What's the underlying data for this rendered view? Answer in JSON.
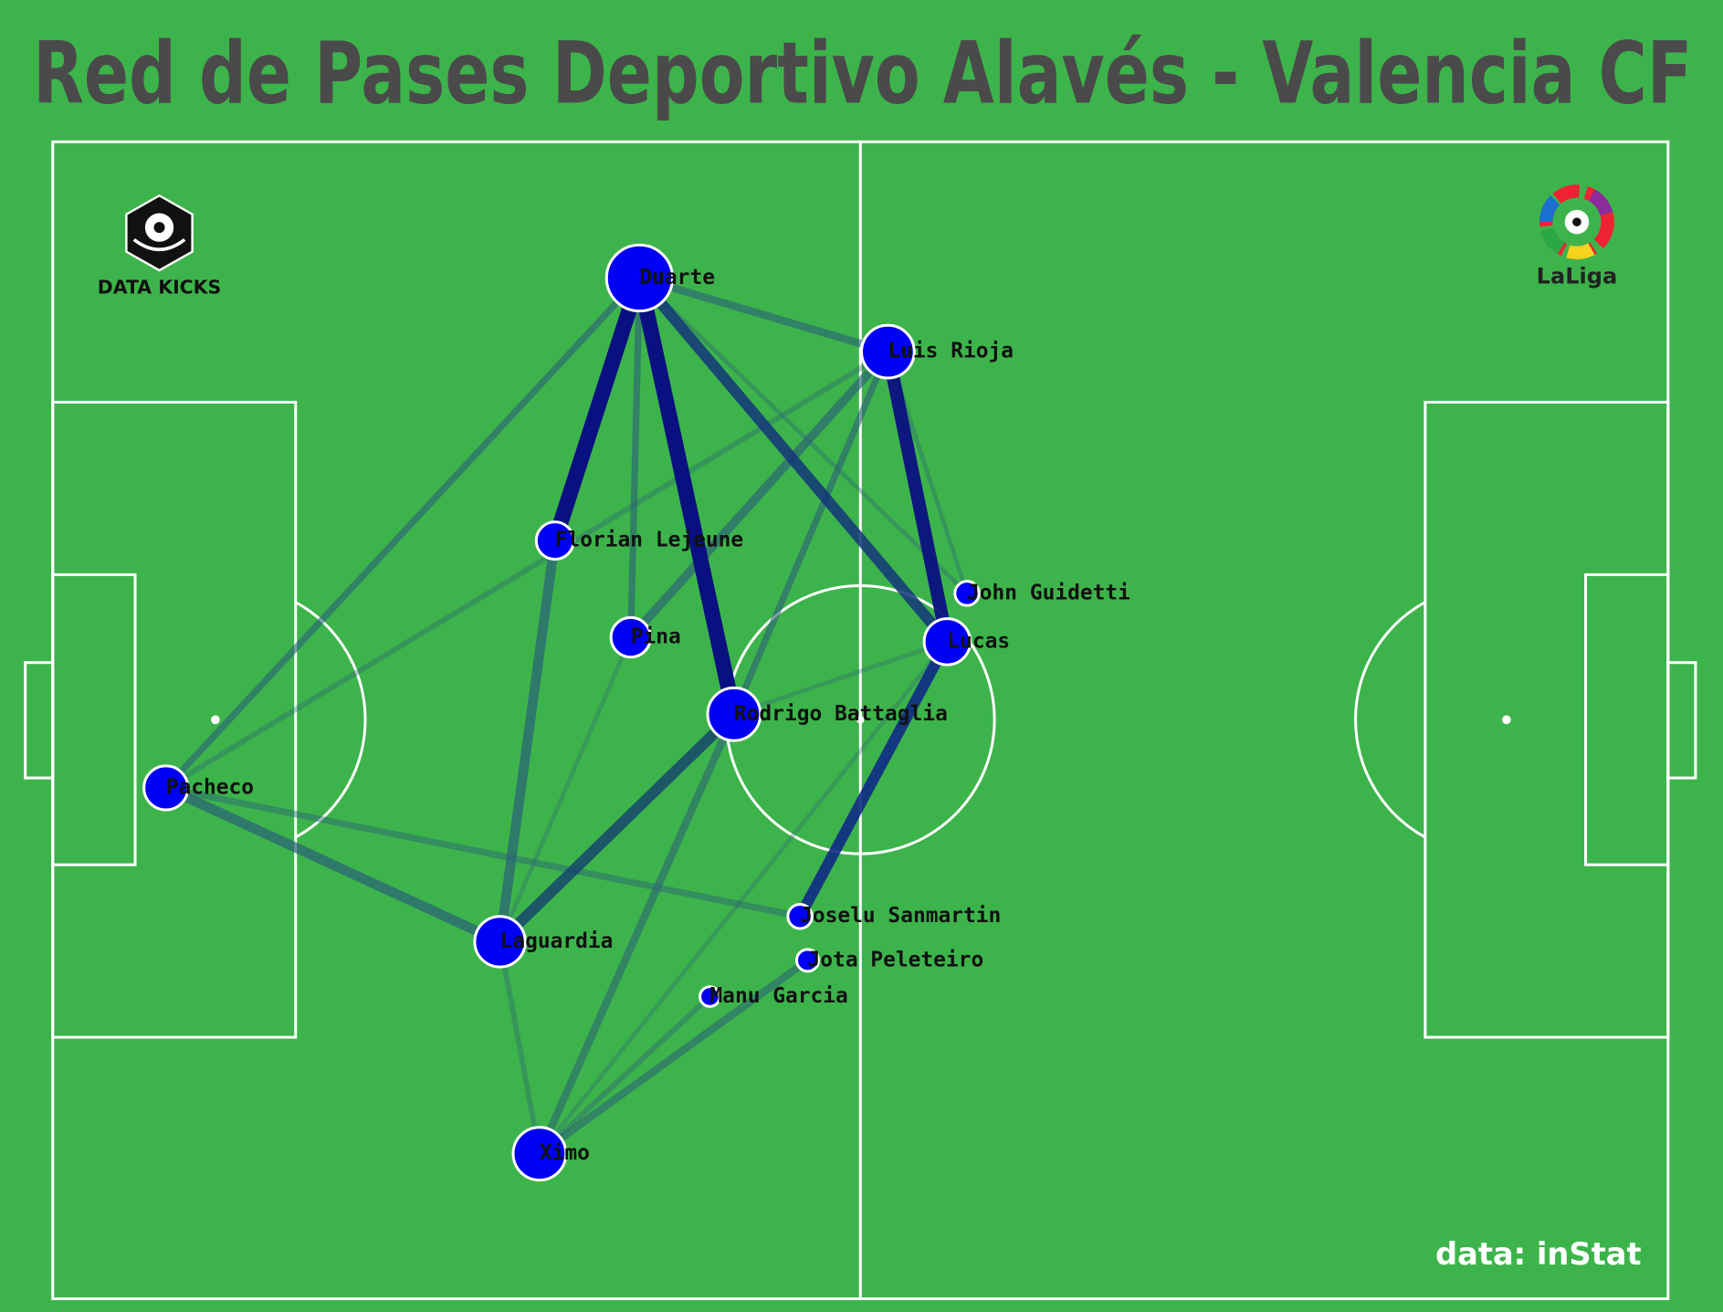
{
  "title": "Red de Pases Deportivo Alavés - Valencia CF",
  "logos": {
    "left": "DATA KICKS",
    "right": "LaLiga"
  },
  "source": "data: inStat",
  "nodes": [
    {
      "label": "Duarte"
    },
    {
      "label": "Luis Rioja"
    },
    {
      "label": "Florian Lejeune"
    },
    {
      "label": "John Guidetti"
    },
    {
      "label": "Pina"
    },
    {
      "label": "Lucas"
    },
    {
      "label": "Rodrigo Battaglia"
    },
    {
      "label": "Pacheco"
    },
    {
      "label": "Joselu Sanmartin"
    },
    {
      "label": "Laguardia"
    },
    {
      "label": "Jota Peleteiro"
    },
    {
      "label": "Manu Garcia"
    },
    {
      "label": "Ximo"
    }
  ]
}
